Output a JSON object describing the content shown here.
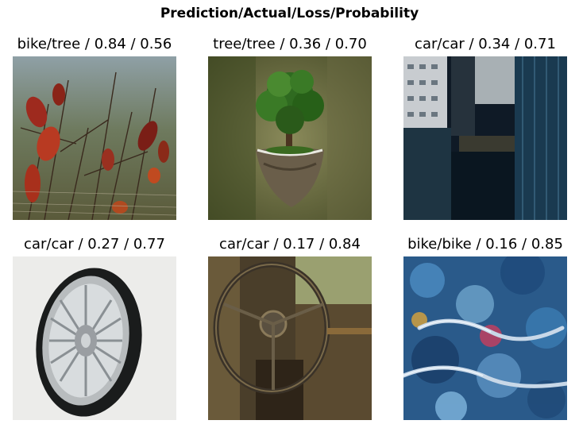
{
  "chart_data": {
    "type": "image_grid",
    "title": "Prediction/Actual/Loss/Probability",
    "panels": [
      {
        "prediction": "bike",
        "actual": "tree",
        "loss": "0.84",
        "probability": "0.56",
        "label": "bike/tree / 0.84 / 0.56",
        "image": "red autumn leaves on dry grass stems"
      },
      {
        "prediction": "tree",
        "actual": "tree",
        "loss": "0.36",
        "probability": "0.70",
        "label": "tree/tree / 0.36 / 0.70",
        "image": "tree growing on a floating chunk of earth"
      },
      {
        "prediction": "car",
        "actual": "car",
        "loss": "0.34",
        "probability": "0.71",
        "label": "car/car / 0.34 / 0.71",
        "image": "city skyscrapers viewed from above"
      },
      {
        "prediction": "car",
        "actual": "car",
        "loss": "0.27",
        "probability": "0.77",
        "label": "car/car / 0.27 / 0.77",
        "image": "chrome car wheel rim with black tire"
      },
      {
        "prediction": "car",
        "actual": "car",
        "loss": "0.17",
        "probability": "0.84",
        "label": "car/car / 0.17 / 0.84",
        "image": "rusty steering wheel in old car interior"
      },
      {
        "prediction": "bike",
        "actual": "bike",
        "loss": "0.16",
        "probability": "0.85",
        "label": "bike/bike / 0.16 / 0.85",
        "image": "blurred bicycle handlebars in blue tones"
      }
    ]
  },
  "colors": {
    "background": "#ffffff",
    "text": "#000000"
  }
}
